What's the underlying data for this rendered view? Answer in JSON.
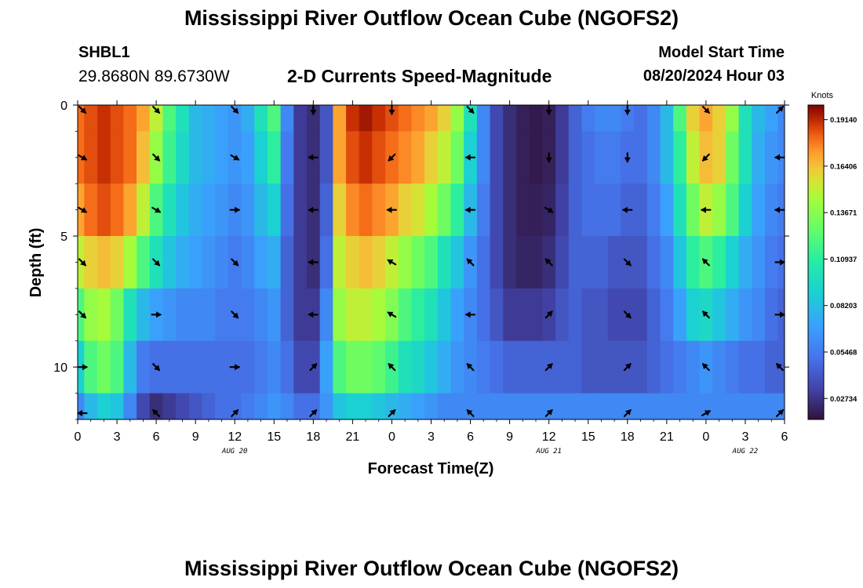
{
  "header": {
    "main_title": "Mississippi River Outflow Ocean Cube (NGOFS2)",
    "station_id": "SHBL1",
    "station_coords": "29.8680N  89.6730W",
    "chart_title": "2-D Currents Speed-Magnitude",
    "model_start_label": "Model Start Time",
    "model_start_value": "08/20/2024 Hour 03"
  },
  "footer": {
    "repeat_title": "Mississippi River Outflow Ocean Cube (NGOFS2)"
  },
  "chart_data": {
    "type": "heatmap",
    "title": "2-D Currents Speed-Magnitude",
    "xlabel": "Forecast Time(Z)",
    "ylabel": "Depth (ft)",
    "x_unit": "hours since 08/20/2024 00Z",
    "xlim": [
      0,
      54
    ],
    "ylim": [
      0,
      12
    ],
    "y_inverted": true,
    "x_ticks": [
      0,
      3,
      6,
      9,
      12,
      15,
      18,
      21,
      24,
      27,
      30,
      33,
      36,
      39,
      42,
      45,
      48,
      51,
      54
    ],
    "x_tick_labels": [
      "0",
      "3",
      "6",
      "9",
      "12",
      "15",
      "18",
      "21",
      "0",
      "3",
      "6",
      "9",
      "12",
      "15",
      "18",
      "21",
      "0",
      "3",
      "6"
    ],
    "y_ticks": [
      0,
      5,
      10
    ],
    "y_tick_labels": [
      "0",
      "5",
      "10"
    ],
    "date_labels": [
      {
        "x": 12,
        "text": "AUG 20"
      },
      {
        "x": 36,
        "text": "AUG 21"
      },
      {
        "x": 51,
        "text": "AUG 22"
      }
    ],
    "colorbar": {
      "title": "Knots",
      "tick_values": [
        0.1914,
        0.16406,
        0.13671,
        0.10937,
        0.08203,
        0.05468,
        0.02734
      ],
      "tick_labels": [
        "0.19140",
        "0.16406",
        "0.13671",
        "0.10937",
        "0.08203",
        "0.05468",
        "0.02734"
      ],
      "range": [
        0.015,
        0.2
      ],
      "colormap": "turbo"
    },
    "speed_knots": {
      "hours": [
        0,
        1,
        2,
        3,
        4,
        5,
        6,
        7,
        8,
        9,
        10,
        11,
        12,
        13,
        14,
        15,
        16,
        17,
        18,
        19,
        20,
        21,
        22,
        23,
        24,
        25,
        26,
        27,
        28,
        29,
        30,
        31,
        32,
        33,
        34,
        35,
        36,
        37,
        38,
        39,
        40,
        41,
        42,
        43,
        44,
        45,
        46,
        47,
        48,
        49,
        50,
        51,
        52,
        53,
        54
      ],
      "depths_ft": [
        0,
        2,
        4,
        6,
        8,
        10,
        12
      ],
      "values": [
        [
          0.18,
          0.185,
          0.19,
          0.185,
          0.18,
          0.17,
          0.15,
          0.12,
          0.1,
          0.08,
          0.075,
          0.07,
          0.065,
          0.075,
          0.1,
          0.12,
          0.06,
          0.03,
          0.025,
          0.04,
          0.17,
          0.19,
          0.195,
          0.19,
          0.185,
          0.18,
          0.175,
          0.17,
          0.16,
          0.14,
          0.1,
          0.06,
          0.035,
          0.025,
          0.02,
          0.018,
          0.02,
          0.03,
          0.045,
          0.055,
          0.06,
          0.06,
          0.055,
          0.05,
          0.06,
          0.08,
          0.12,
          0.16,
          0.17,
          0.16,
          0.14,
          0.1,
          0.08,
          0.07,
          0.06
        ],
        [
          0.18,
          0.185,
          0.19,
          0.185,
          0.18,
          0.165,
          0.14,
          0.115,
          0.095,
          0.08,
          0.075,
          0.07,
          0.065,
          0.07,
          0.09,
          0.11,
          0.055,
          0.03,
          0.025,
          0.04,
          0.17,
          0.185,
          0.19,
          0.185,
          0.18,
          0.175,
          0.17,
          0.16,
          0.15,
          0.13,
          0.09,
          0.06,
          0.035,
          0.025,
          0.02,
          0.018,
          0.02,
          0.03,
          0.045,
          0.05,
          0.055,
          0.055,
          0.05,
          0.05,
          0.06,
          0.08,
          0.11,
          0.15,
          0.165,
          0.16,
          0.13,
          0.1,
          0.075,
          0.065,
          0.06
        ],
        [
          0.17,
          0.18,
          0.185,
          0.18,
          0.17,
          0.15,
          0.12,
          0.1,
          0.085,
          0.075,
          0.07,
          0.065,
          0.06,
          0.065,
          0.08,
          0.09,
          0.05,
          0.03,
          0.025,
          0.045,
          0.16,
          0.175,
          0.18,
          0.175,
          0.17,
          0.16,
          0.155,
          0.145,
          0.13,
          0.11,
          0.08,
          0.055,
          0.035,
          0.025,
          0.02,
          0.02,
          0.022,
          0.032,
          0.045,
          0.05,
          0.05,
          0.05,
          0.045,
          0.045,
          0.055,
          0.07,
          0.1,
          0.13,
          0.15,
          0.14,
          0.12,
          0.09,
          0.07,
          0.06,
          0.055
        ],
        [
          0.15,
          0.16,
          0.165,
          0.16,
          0.145,
          0.12,
          0.1,
          0.085,
          0.075,
          0.07,
          0.065,
          0.06,
          0.055,
          0.06,
          0.07,
          0.075,
          0.045,
          0.03,
          0.025,
          0.05,
          0.15,
          0.16,
          0.165,
          0.16,
          0.15,
          0.14,
          0.13,
          0.12,
          0.1,
          0.085,
          0.065,
          0.05,
          0.035,
          0.025,
          0.022,
          0.022,
          0.025,
          0.035,
          0.045,
          0.045,
          0.045,
          0.04,
          0.04,
          0.04,
          0.05,
          0.06,
          0.085,
          0.11,
          0.12,
          0.11,
          0.09,
          0.075,
          0.065,
          0.055,
          0.05
        ],
        [
          0.12,
          0.14,
          0.145,
          0.13,
          0.1,
          0.08,
          0.07,
          0.065,
          0.06,
          0.06,
          0.06,
          0.055,
          0.055,
          0.055,
          0.06,
          0.065,
          0.045,
          0.03,
          0.03,
          0.06,
          0.14,
          0.15,
          0.15,
          0.145,
          0.135,
          0.12,
          0.11,
          0.1,
          0.085,
          0.07,
          0.06,
          0.05,
          0.04,
          0.03,
          0.03,
          0.03,
          0.032,
          0.04,
          0.045,
          0.04,
          0.04,
          0.035,
          0.035,
          0.035,
          0.045,
          0.055,
          0.07,
          0.09,
          0.095,
          0.085,
          0.075,
          0.065,
          0.06,
          0.05,
          0.045
        ],
        [
          0.09,
          0.12,
          0.13,
          0.12,
          0.08,
          0.055,
          0.05,
          0.05,
          0.05,
          0.05,
          0.05,
          0.05,
          0.05,
          0.05,
          0.055,
          0.06,
          0.05,
          0.035,
          0.035,
          0.07,
          0.12,
          0.13,
          0.13,
          0.125,
          0.115,
          0.1,
          0.095,
          0.085,
          0.075,
          0.065,
          0.06,
          0.055,
          0.05,
          0.045,
          0.045,
          0.045,
          0.045,
          0.045,
          0.045,
          0.04,
          0.04,
          0.04,
          0.04,
          0.04,
          0.045,
          0.05,
          0.055,
          0.06,
          0.065,
          0.06,
          0.055,
          0.05,
          0.05,
          0.045,
          0.045
        ],
        [
          0.06,
          0.08,
          0.09,
          0.085,
          0.06,
          0.035,
          0.025,
          0.03,
          0.035,
          0.04,
          0.045,
          0.05,
          0.05,
          0.055,
          0.06,
          0.065,
          0.06,
          0.05,
          0.05,
          0.065,
          0.085,
          0.09,
          0.09,
          0.085,
          0.08,
          0.075,
          0.07,
          0.065,
          0.06,
          0.06,
          0.06,
          0.06,
          0.06,
          0.06,
          0.06,
          0.06,
          0.06,
          0.06,
          0.06,
          0.06,
          0.06,
          0.06,
          0.06,
          0.06,
          0.06,
          0.06,
          0.06,
          0.06,
          0.06,
          0.06,
          0.06,
          0.06,
          0.06,
          0.06,
          0.06
        ]
      ]
    },
    "current_vectors": {
      "hours": [
        0,
        6,
        12,
        18,
        24,
        30,
        36,
        42,
        48,
        54
      ],
      "depths_ft": [
        0,
        2,
        4,
        6,
        8,
        10,
        12
      ],
      "direction_deg_clockwise_from_north": [
        [
          135,
          135,
          135,
          180,
          180,
          135,
          180,
          180,
          135,
          45
        ],
        [
          120,
          135,
          120,
          270,
          225,
          270,
          180,
          180,
          225,
          270
        ],
        [
          120,
          120,
          90,
          270,
          270,
          270,
          120,
          270,
          270,
          270
        ],
        [
          135,
          135,
          135,
          270,
          300,
          315,
          315,
          135,
          315,
          90
        ],
        [
          135,
          90,
          135,
          270,
          300,
          270,
          45,
          135,
          315,
          90
        ],
        [
          90,
          135,
          90,
          45,
          315,
          315,
          45,
          45,
          315,
          315
        ],
        [
          270,
          315,
          45,
          45,
          45,
          315,
          45,
          45,
          60,
          45
        ]
      ]
    }
  }
}
